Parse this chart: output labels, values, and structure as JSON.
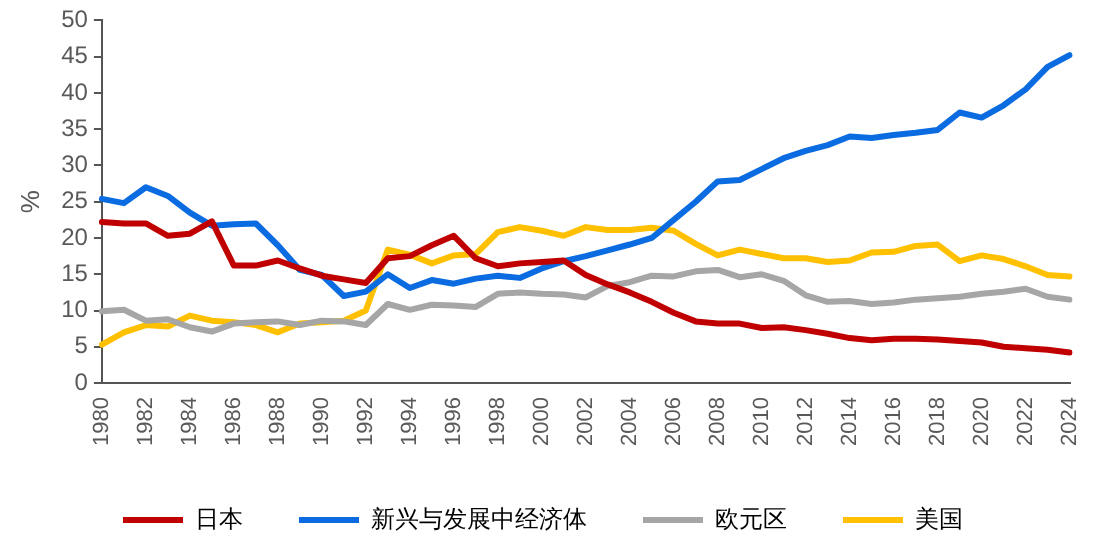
{
  "chart_data": {
    "type": "line",
    "ylabel": "%",
    "categories": [
      "1980",
      null,
      "1982",
      null,
      "1984",
      null,
      "1986",
      null,
      "1988",
      null,
      "1990",
      null,
      "1992",
      null,
      "1994",
      null,
      "1996",
      null,
      "1998",
      null,
      "2000",
      null,
      "2002",
      null,
      "2004",
      null,
      "2006",
      null,
      "2008",
      null,
      "2010",
      null,
      "2012",
      null,
      "2014",
      null,
      "2016",
      null,
      "2018",
      null,
      "2020",
      null,
      "2022",
      null,
      "2024"
    ],
    "series": [
      {
        "name": "日本",
        "color": "#c00000",
        "values": [
          22.2,
          22.0,
          22.0,
          20.3,
          20.6,
          22.3,
          16.2,
          16.2,
          16.9,
          15.8,
          14.8,
          14.3,
          13.8,
          17.2,
          17.5,
          19.0,
          20.3,
          17.2,
          16.1,
          16.5,
          16.7,
          16.9,
          14.9,
          13.6,
          12.5,
          11.2,
          9.7,
          8.5,
          8.2,
          8.2,
          7.6,
          7.7,
          7.3,
          6.8,
          6.2,
          5.9,
          6.1,
          6.1,
          6.0,
          5.8,
          5.6,
          5.0,
          4.8,
          4.6,
          4.2
        ]
      },
      {
        "name": "新兴与发展中经济体",
        "color": "#0a6ce0",
        "values": [
          25.4,
          24.8,
          27.0,
          25.8,
          23.5,
          21.7,
          21.9,
          22.0,
          19.0,
          15.6,
          14.9,
          12.0,
          12.6,
          15.0,
          13.1,
          14.2,
          13.7,
          14.4,
          14.8,
          14.5,
          15.8,
          16.8,
          17.5,
          18.3,
          19.1,
          20.0,
          22.5,
          25.0,
          27.8,
          28.0,
          29.5,
          31.0,
          32.0,
          32.8,
          34.0,
          33.8,
          34.2,
          34.5,
          34.9,
          37.3,
          36.6,
          38.3,
          40.5,
          43.6,
          45.2
        ]
      },
      {
        "name": "欧元区",
        "color": "#a6a6a6",
        "values": [
          9.9,
          10.1,
          8.6,
          8.8,
          7.7,
          7.1,
          8.2,
          8.4,
          8.5,
          8.0,
          8.6,
          8.5,
          8.0,
          10.9,
          10.1,
          10.8,
          10.7,
          10.5,
          12.3,
          12.5,
          12.3,
          12.2,
          11.8,
          13.4,
          13.9,
          14.8,
          14.7,
          15.4,
          15.6,
          14.6,
          15.0,
          14.1,
          12.1,
          11.2,
          11.3,
          10.9,
          11.1,
          11.5,
          11.7,
          11.9,
          12.3,
          12.6,
          13.0,
          11.9,
          11.5
        ]
      },
      {
        "name": "美国",
        "color": "#ffc000",
        "values": [
          5.3,
          7.0,
          8.0,
          7.8,
          9.3,
          8.6,
          8.4,
          8.0,
          7.0,
          8.2,
          8.4,
          8.6,
          10.0,
          18.4,
          17.7,
          16.5,
          17.6,
          17.8,
          20.8,
          21.5,
          21.0,
          20.3,
          21.5,
          21.1,
          21.1,
          21.4,
          21.0,
          19.2,
          17.6,
          18.4,
          17.8,
          17.2,
          17.2,
          16.7,
          16.9,
          18.0,
          18.1,
          18.9,
          19.1,
          16.8,
          17.6,
          17.1,
          16.1,
          14.9,
          14.7
        ]
      }
    ],
    "ylim": [
      0,
      50
    ],
    "yticks": [
      0,
      5,
      10,
      15,
      20,
      25,
      30,
      35,
      40,
      45,
      50
    ],
    "grid": false,
    "legend": "bottom",
    "marker": "none",
    "line_style": "solid"
  }
}
